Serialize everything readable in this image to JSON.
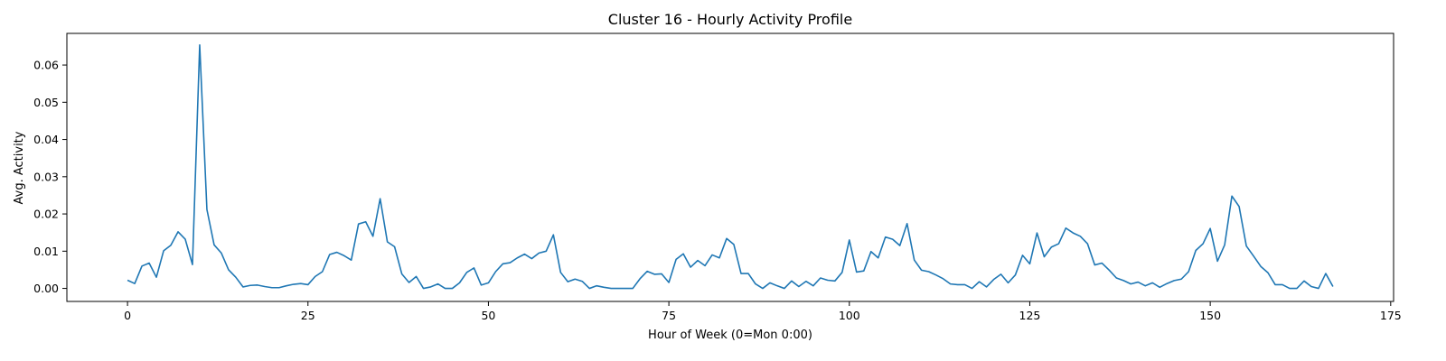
{
  "chart_data": {
    "type": "line",
    "title": "Cluster 16 - Hourly Activity Profile",
    "xlabel": "Hour of Week (0=Mon 0:00)",
    "ylabel": "Avg. Activity",
    "xlim": [
      -8.4,
      175.4
    ],
    "ylim": [
      -0.0035,
      0.0685
    ],
    "x_ticks": [
      0,
      25,
      50,
      75,
      100,
      125,
      150,
      175
    ],
    "x_tick_labels": [
      "0",
      "25",
      "50",
      "75",
      "100",
      "125",
      "150",
      "175"
    ],
    "y_ticks": [
      0,
      0.01,
      0.02,
      0.03,
      0.04,
      0.05,
      0.06
    ],
    "y_tick_labels": [
      "0.00",
      "0.01",
      "0.02",
      "0.03",
      "0.04",
      "0.05",
      "0.06"
    ],
    "grid": false,
    "line_color": "#1f77b4",
    "series": [
      {
        "values": [
          0.0022,
          0.0013,
          0.006,
          0.0068,
          0.003,
          0.0101,
          0.0116,
          0.0152,
          0.0132,
          0.0064,
          0.0654,
          0.0212,
          0.0117,
          0.0095,
          0.005,
          0.003,
          0.0004,
          0.0008,
          0.0009,
          0.0005,
          0.0002,
          0.0002,
          0.0007,
          0.0011,
          0.0013,
          0.001,
          0.0032,
          0.0045,
          0.0091,
          0.0097,
          0.0088,
          0.0076,
          0.0173,
          0.0179,
          0.014,
          0.0241,
          0.0125,
          0.0112,
          0.0039,
          0.0016,
          0.0032,
          0.0,
          0.0004,
          0.0012,
          0.0,
          0.0,
          0.0015,
          0.0043,
          0.0055,
          0.0009,
          0.0015,
          0.0045,
          0.0066,
          0.0069,
          0.0082,
          0.0092,
          0.008,
          0.0095,
          0.01,
          0.0144,
          0.0043,
          0.0018,
          0.0025,
          0.0019,
          0.0,
          0.0007,
          0.0003,
          0.0,
          0.0,
          0.0,
          0.0,
          0.0026,
          0.0046,
          0.0038,
          0.0039,
          0.0016,
          0.0078,
          0.0093,
          0.0057,
          0.0075,
          0.0061,
          0.009,
          0.0082,
          0.0134,
          0.0118,
          0.004,
          0.004,
          0.0012,
          0.0,
          0.0015,
          0.0007,
          0.0,
          0.002,
          0.0005,
          0.0019,
          0.0007,
          0.0028,
          0.0022,
          0.002,
          0.0043,
          0.013,
          0.0044,
          0.0047,
          0.0099,
          0.0082,
          0.0138,
          0.0132,
          0.0115,
          0.0174,
          0.0076,
          0.0049,
          0.0045,
          0.0036,
          0.0026,
          0.0012,
          0.001,
          0.001,
          0.0,
          0.0018,
          0.0004,
          0.0024,
          0.0038,
          0.0015,
          0.0036,
          0.0089,
          0.0066,
          0.0149,
          0.0085,
          0.0111,
          0.012,
          0.0162,
          0.0149,
          0.014,
          0.012,
          0.0063,
          0.0068,
          0.0049,
          0.0028,
          0.0021,
          0.0012,
          0.0017,
          0.0007,
          0.0015,
          0.0003,
          0.0013,
          0.0021,
          0.0025,
          0.0045,
          0.0102,
          0.012,
          0.0161,
          0.0073,
          0.0117,
          0.0248,
          0.022,
          0.0114,
          0.0087,
          0.0059,
          0.0042,
          0.001,
          0.001,
          0.0,
          0.0,
          0.002,
          0.0005,
          0.0,
          0.004,
          0.0005
        ]
      }
    ]
  }
}
